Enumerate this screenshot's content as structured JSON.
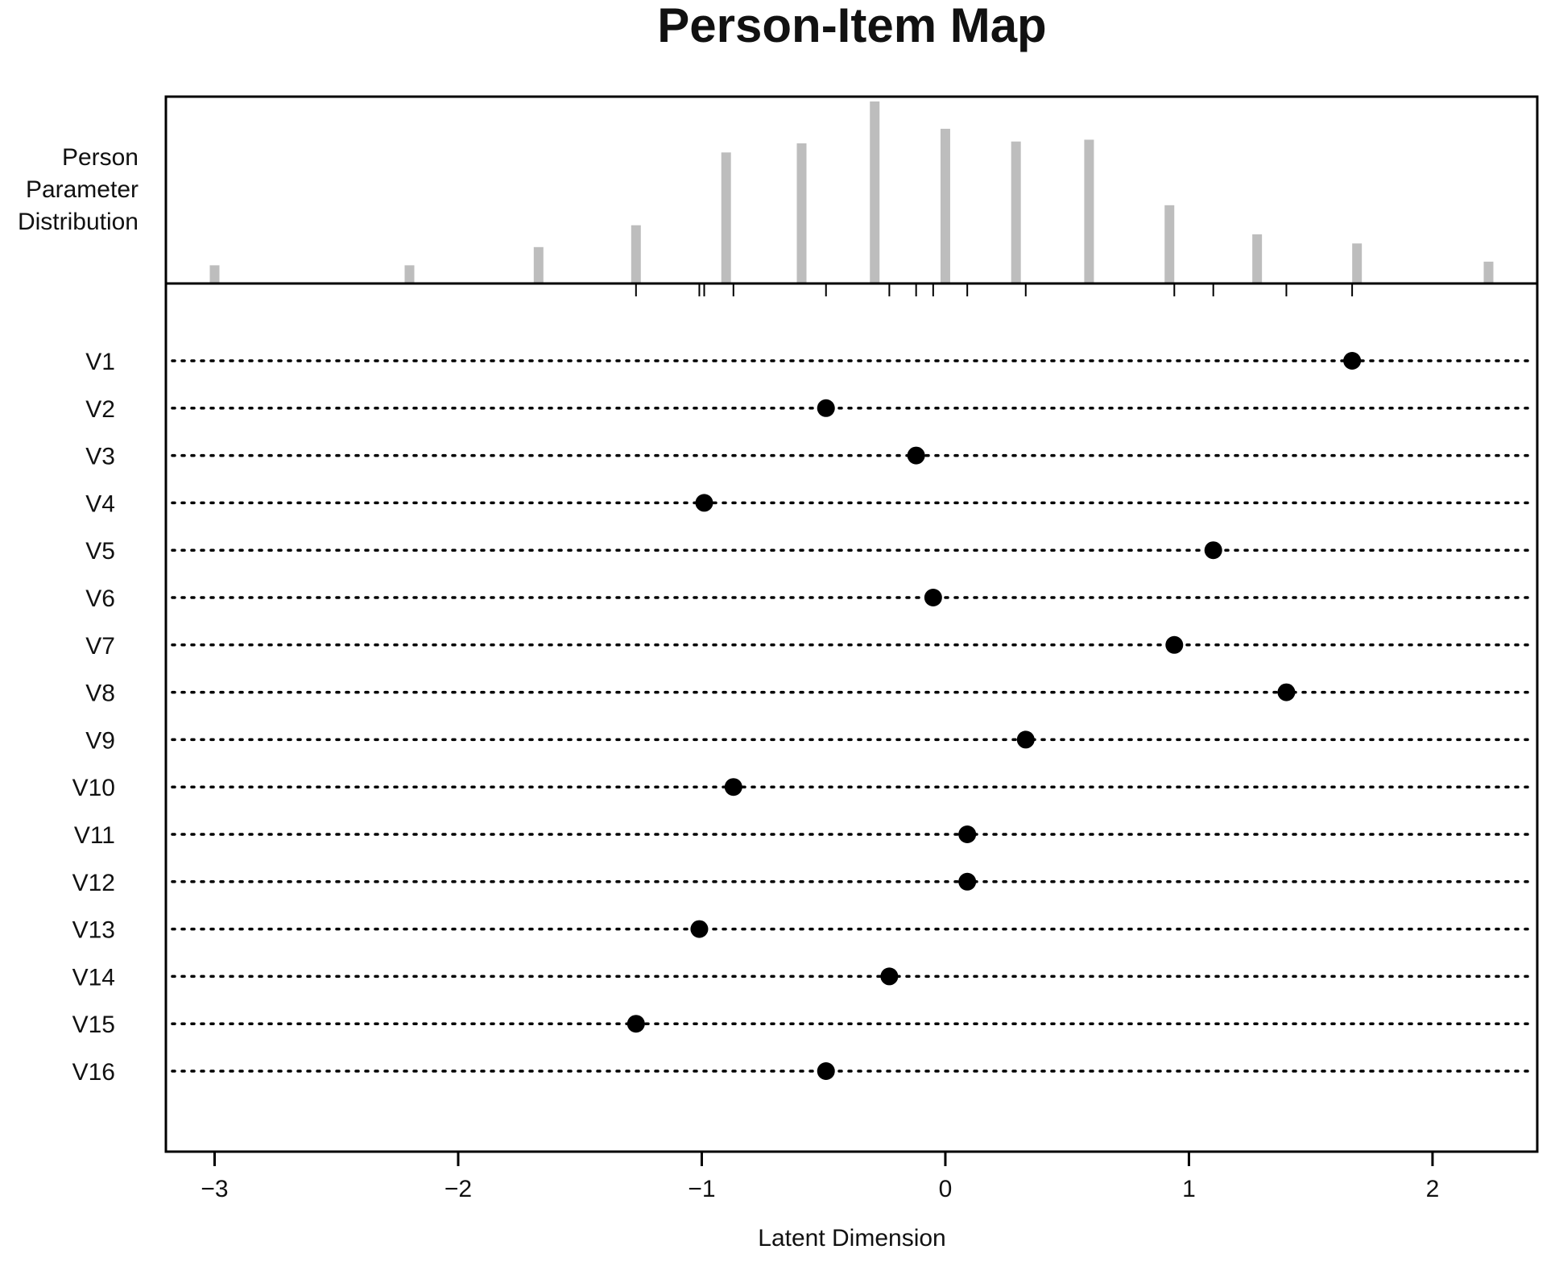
{
  "chart_data": {
    "type": "scatter",
    "title": "Person-Item Map",
    "xlabel": "Latent Dimension",
    "person_panel_label": [
      "Person",
      "Parameter",
      "Distribution"
    ],
    "xlim": [
      -3.2,
      2.43
    ],
    "x_ticks": [
      -3,
      -2,
      -1,
      0,
      1,
      2
    ],
    "x_tick_labels": [
      "−3",
      "−2",
      "−1",
      "0",
      "1",
      "2"
    ],
    "person_distribution": {
      "x": [
        -3.0,
        -2.2,
        -1.67,
        -1.27,
        -0.9,
        -0.59,
        -0.29,
        0.0,
        0.29,
        0.59,
        0.92,
        1.28,
        1.69,
        2.23
      ],
      "counts": [
        10,
        10,
        20,
        32,
        72,
        77,
        100,
        85,
        78,
        79,
        43,
        27,
        22,
        12
      ]
    },
    "threshold_ticks": [
      -1.27,
      -1.01,
      -0.99,
      -0.87,
      -0.49,
      -0.23,
      -0.12,
      -0.05,
      0.09,
      0.33,
      0.94,
      1.1,
      1.4,
      1.67
    ],
    "items": [
      {
        "label": "V1",
        "location": 1.67
      },
      {
        "label": "V2",
        "location": -0.49
      },
      {
        "label": "V3",
        "location": -0.12
      },
      {
        "label": "V4",
        "location": -0.99
      },
      {
        "label": "V5",
        "location": 1.1
      },
      {
        "label": "V6",
        "location": -0.05
      },
      {
        "label": "V7",
        "location": 0.94
      },
      {
        "label": "V8",
        "location": 1.4
      },
      {
        "label": "V9",
        "location": 0.33
      },
      {
        "label": "V10",
        "location": -0.87
      },
      {
        "label": "V11",
        "location": 0.09
      },
      {
        "label": "V12",
        "location": 0.09
      },
      {
        "label": "V13",
        "location": -1.01
      },
      {
        "label": "V14",
        "location": -0.23
      },
      {
        "label": "V15",
        "location": -1.27
      },
      {
        "label": "V16",
        "location": -0.49
      }
    ],
    "colors": {
      "bars": "#bdbdbd",
      "points": "#000000",
      "axis": "#000000",
      "dots": "#000000"
    }
  }
}
